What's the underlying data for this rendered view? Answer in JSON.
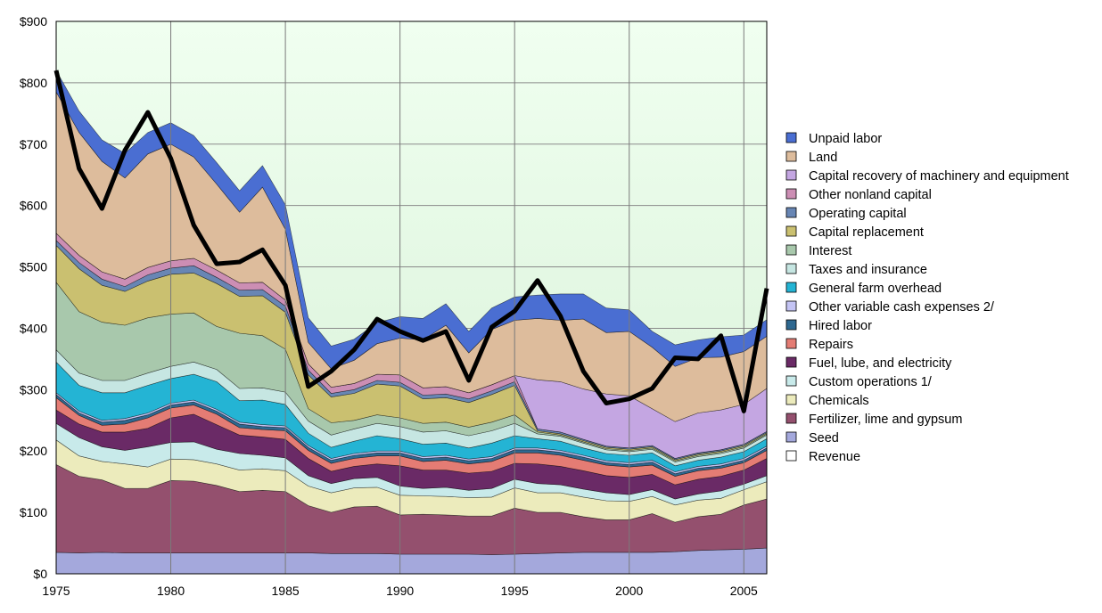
{
  "chart_data": {
    "type": "area",
    "title": "",
    "xlabel": "",
    "ylabel": "",
    "ylim": [
      0,
      900
    ],
    "xlim": [
      1975,
      2006
    ],
    "grid": true,
    "legend_position": "right",
    "y_ticks": [
      "$0",
      "$100",
      "$200",
      "$300",
      "$400",
      "$500",
      "$600",
      "$700",
      "$800",
      "$900"
    ],
    "x_ticks": [
      "1975",
      "1980",
      "1985",
      "1990",
      "1995",
      "2000",
      "2005"
    ],
    "x_tick_values": [
      1975,
      1980,
      1985,
      1990,
      1995,
      2000,
      2005
    ],
    "x": [
      1975,
      1976,
      1977,
      1978,
      1979,
      1980,
      1981,
      1982,
      1983,
      1984,
      1985,
      1986,
      1987,
      1988,
      1989,
      1990,
      1991,
      1992,
      1993,
      1994,
      1995,
      1996,
      1997,
      1998,
      1999,
      2000,
      2001,
      2002,
      2003,
      2004,
      2005,
      2006
    ],
    "series": [
      {
        "name": "Seed",
        "color": "#a4a8dc",
        "values": [
          35,
          34,
          35,
          34,
          34,
          34,
          34,
          34,
          34,
          34,
          34,
          34,
          33,
          33,
          33,
          32,
          32,
          32,
          32,
          31,
          32,
          33,
          34,
          35,
          35,
          35,
          35,
          36,
          38,
          39,
          40,
          42
        ]
      },
      {
        "name": "Fertilizer, lime and gypsum",
        "color": "#94506e",
        "values": [
          143,
          125,
          118,
          105,
          105,
          118,
          117,
          110,
          100,
          102,
          100,
          77,
          67,
          76,
          77,
          64,
          65,
          64,
          62,
          63,
          75,
          67,
          66,
          58,
          53,
          53,
          63,
          48,
          55,
          58,
          72,
          80
        ]
      },
      {
        "name": "Chemicals",
        "color": "#ecebbc",
        "values": [
          40,
          33,
          30,
          40,
          35,
          35,
          35,
          35,
          35,
          35,
          34,
          32,
          32,
          31,
          31,
          32,
          30,
          30,
          30,
          31,
          33,
          32,
          32,
          32,
          31,
          30,
          28,
          28,
          27,
          26,
          25,
          28
        ]
      },
      {
        "name": "Custom operations  1/",
        "color": "#c8eaea",
        "values": [
          27,
          30,
          24,
          22,
          33,
          27,
          29,
          24,
          27,
          22,
          21,
          17,
          15,
          15,
          16,
          15,
          12,
          15,
          12,
          14,
          14,
          15,
          13,
          13,
          13,
          11,
          11,
          10,
          10,
          12,
          9,
          10
        ]
      },
      {
        "name": "Fuel, lube, and electricity",
        "color": "#6a2a66",
        "values": [
          22,
          22,
          24,
          30,
          30,
          40,
          45,
          40,
          30,
          30,
          30,
          28,
          20,
          20,
          22,
          33,
          30,
          28,
          28,
          28,
          26,
          32,
          30,
          30,
          28,
          28,
          25,
          23,
          24,
          24,
          23,
          28
        ]
      },
      {
        "name": "Repairs",
        "color": "#e47c74",
        "values": [
          20,
          14,
          11,
          13,
          17,
          16,
          15,
          17,
          12,
          12,
          14,
          13,
          13,
          13,
          13,
          16,
          14,
          16,
          15,
          16,
          17,
          18,
          18,
          17,
          17,
          17,
          15,
          14,
          14,
          13,
          12,
          13
        ]
      },
      {
        "name": "Hired labor",
        "color": "#2e6890",
        "values": [
          5,
          4,
          5,
          6,
          5,
          5,
          5,
          5,
          6,
          5,
          5,
          5,
          5,
          5,
          5,
          5,
          5,
          5,
          5,
          5,
          5,
          5,
          5,
          5,
          4,
          4,
          5,
          4,
          4,
          4,
          4,
          4
        ]
      },
      {
        "name": "Other variable cash expenses  2/",
        "color": "#c4c4f4",
        "values": [
          3,
          3,
          3,
          3,
          3,
          3,
          3,
          3,
          3,
          3,
          3,
          3,
          3,
          3,
          3,
          3,
          3,
          3,
          3,
          3,
          3,
          3,
          3,
          3,
          3,
          3,
          3,
          3,
          3,
          3,
          3,
          3
        ]
      },
      {
        "name": "General farm overhead",
        "color": "#24b4d4",
        "values": [
          50,
          42,
          45,
          42,
          45,
          40,
          42,
          45,
          35,
          40,
          35,
          20,
          18,
          20,
          25,
          20,
          20,
          20,
          18,
          22,
          20,
          15,
          15,
          12,
          12,
          12,
          12,
          10,
          10,
          11,
          11,
          12
        ]
      },
      {
        "name": "Taxes and insurance",
        "color": "#c6e6e2",
        "values": [
          20,
          20,
          20,
          20,
          20,
          20,
          20,
          20,
          20,
          20,
          20,
          20,
          20,
          20,
          20,
          20,
          20,
          20,
          20,
          20,
          20,
          8,
          8,
          8,
          6,
          6,
          6,
          6,
          6,
          6,
          6,
          6
        ]
      },
      {
        "name": "Interest",
        "color": "#a8c8ac",
        "values": [
          110,
          100,
          95,
          90,
          90,
          85,
          80,
          70,
          90,
          85,
          70,
          20,
          20,
          14,
          14,
          14,
          14,
          14,
          14,
          14,
          14,
          3,
          2,
          2,
          2,
          2,
          2,
          2,
          2,
          2,
          2,
          2
        ]
      },
      {
        "name": "Capital replacement",
        "color": "#cac070",
        "values": [
          60,
          70,
          60,
          55,
          60,
          65,
          65,
          70,
          60,
          65,
          60,
          55,
          42,
          44,
          50,
          52,
          40,
          40,
          40,
          45,
          48,
          2,
          2,
          2,
          2,
          2,
          2,
          2,
          2,
          2,
          2,
          2
        ]
      },
      {
        "name": "Operating capital",
        "color": "#6886b4",
        "values": [
          8,
          10,
          10,
          8,
          10,
          10,
          12,
          10,
          10,
          10,
          10,
          8,
          6,
          6,
          6,
          6,
          6,
          6,
          6,
          6,
          6,
          3,
          3,
          2,
          2,
          2,
          2,
          2,
          2,
          2,
          2,
          2
        ]
      },
      {
        "name": "Other nonland capital",
        "color": "#cc8eb4",
        "values": [
          12,
          12,
          12,
          12,
          12,
          12,
          12,
          12,
          12,
          12,
          10,
          10,
          10,
          10,
          10,
          12,
          12,
          12,
          10,
          10,
          10,
          0,
          0,
          0,
          0,
          0,
          0,
          0,
          0,
          0,
          0,
          0
        ]
      },
      {
        "name": "Capital recovery of machinery and equipment",
        "color": "#c4a6e2",
        "values": [
          0,
          0,
          0,
          0,
          0,
          0,
          0,
          0,
          0,
          0,
          0,
          0,
          0,
          0,
          0,
          0,
          0,
          0,
          0,
          0,
          0,
          80,
          82,
          82,
          85,
          85,
          60,
          60,
          65,
          65,
          65,
          70
        ]
      },
      {
        "name": "Land",
        "color": "#ddbc9c",
        "values": [
          230,
          200,
          180,
          165,
          185,
          190,
          165,
          140,
          115,
          155,
          115,
          35,
          30,
          38,
          50,
          60,
          78,
          100,
          65,
          90,
          90,
          100,
          100,
          114,
          100,
          105,
          100,
          90,
          90,
          86,
          86,
          85
        ]
      },
      {
        "name": "Unpaid labor",
        "color": "#4a6ed2",
        "values": [
          35,
          35,
          35,
          40,
          35,
          35,
          35,
          35,
          35,
          35,
          40,
          40,
          37,
          34,
          34,
          35,
          35,
          35,
          35,
          35,
          38,
          38,
          43,
          41,
          40,
          35,
          26,
          35,
          29,
          33,
          27,
          27
        ]
      }
    ],
    "line": {
      "name": "Revenue",
      "color": "#000000",
      "values": [
        820,
        660,
        595,
        690,
        752,
        677,
        568,
        505,
        508,
        528,
        470,
        305,
        330,
        365,
        415,
        395,
        380,
        395,
        315,
        402,
        428,
        478,
        420,
        330,
        278,
        285,
        302,
        352,
        350,
        388,
        265,
        465
      ]
    },
    "legend_order": [
      "Unpaid labor",
      "Land",
      "Capital recovery of machinery and equipment",
      "Other nonland capital",
      "Operating capital",
      "Capital replacement",
      "Interest",
      "Taxes and insurance",
      "General farm overhead",
      "Other variable cash expenses  2/",
      "Hired labor",
      "Repairs",
      "Fuel, lube, and electricity",
      "Custom operations  1/",
      "Chemicals",
      "Fertilizer, lime and gypsum",
      "Seed",
      "Revenue"
    ]
  }
}
